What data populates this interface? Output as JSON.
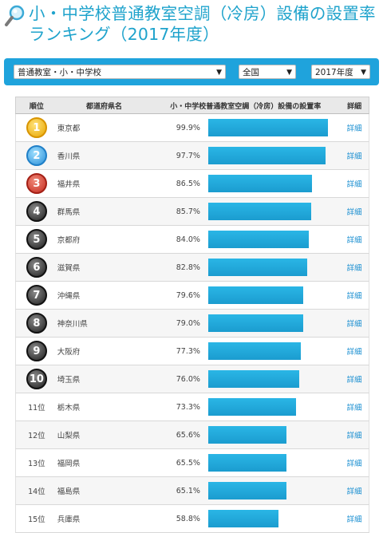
{
  "page": {
    "title": "小・中学校普通教室空調（冷房）設備の設置率ランキング（2017年度）"
  },
  "filters": {
    "category": "普通教室・小・中学校",
    "region": "全国",
    "year": "2017年度"
  },
  "table": {
    "headers": {
      "rank": "順位",
      "prefecture": "都道府県名",
      "chart": "小・中学校普通教室空調（冷房）設備の設置率",
      "detail": "詳細"
    },
    "detail_label": "詳細",
    "rows": [
      {
        "rank": "1",
        "medal": "gold",
        "prefecture": "東京都",
        "value": "99.9%",
        "rate": 99.9
      },
      {
        "rank": "2",
        "medal": "silver",
        "prefecture": "香川県",
        "value": "97.7%",
        "rate": 97.7
      },
      {
        "rank": "3",
        "medal": "bronze",
        "prefecture": "福井県",
        "value": "86.5%",
        "rate": 86.5
      },
      {
        "rank": "4",
        "medal": "black",
        "prefecture": "群馬県",
        "value": "85.7%",
        "rate": 85.7
      },
      {
        "rank": "5",
        "medal": "black",
        "prefecture": "京都府",
        "value": "84.0%",
        "rate": 84.0
      },
      {
        "rank": "6",
        "medal": "black",
        "prefecture": "滋賀県",
        "value": "82.8%",
        "rate": 82.8
      },
      {
        "rank": "7",
        "medal": "black",
        "prefecture": "沖縄県",
        "value": "79.6%",
        "rate": 79.6
      },
      {
        "rank": "8",
        "medal": "black",
        "prefecture": "神奈川県",
        "value": "79.0%",
        "rate": 79.0
      },
      {
        "rank": "9",
        "medal": "black",
        "prefecture": "大阪府",
        "value": "77.3%",
        "rate": 77.3
      },
      {
        "rank": "10",
        "medal": "black",
        "prefecture": "埼玉県",
        "value": "76.0%",
        "rate": 76.0
      },
      {
        "rank": "11位",
        "medal": "",
        "prefecture": "栃木県",
        "value": "73.3%",
        "rate": 73.3
      },
      {
        "rank": "12位",
        "medal": "",
        "prefecture": "山梨県",
        "value": "65.6%",
        "rate": 65.6
      },
      {
        "rank": "13位",
        "medal": "",
        "prefecture": "福岡県",
        "value": "65.5%",
        "rate": 65.5
      },
      {
        "rank": "14位",
        "medal": "",
        "prefecture": "福島県",
        "value": "65.1%",
        "rate": 65.1
      },
      {
        "rank": "15位",
        "medal": "",
        "prefecture": "兵庫県",
        "value": "58.8%",
        "rate": 58.8
      }
    ]
  },
  "colors": {
    "accent": "#1fa3dc",
    "bar": "#1b9ccf",
    "link": "#1a8fd1"
  }
}
